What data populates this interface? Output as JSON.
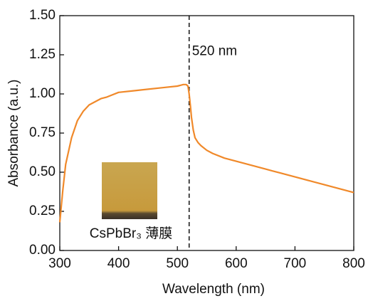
{
  "chart_data": {
    "type": "line",
    "xlabel": "Wavelength (nm)",
    "ylabel": "Absorbance (a.u.)",
    "x": [
      300,
      305,
      310,
      320,
      330,
      340,
      350,
      360,
      370,
      380,
      400,
      425,
      450,
      475,
      500,
      510,
      515,
      518,
      520,
      522,
      524,
      527,
      530,
      535,
      540,
      550,
      560,
      580,
      600,
      625,
      650,
      675,
      700,
      725,
      750,
      775,
      800
    ],
    "series": [
      {
        "name": "CsPbBr₃",
        "color": "#f0892a",
        "values": [
          0.18,
          0.38,
          0.55,
          0.72,
          0.83,
          0.89,
          0.93,
          0.95,
          0.97,
          0.98,
          1.01,
          1.02,
          1.03,
          1.04,
          1.05,
          1.06,
          1.06,
          1.05,
          1.0,
          0.93,
          0.85,
          0.77,
          0.72,
          0.69,
          0.67,
          0.64,
          0.62,
          0.59,
          0.57,
          0.545,
          0.52,
          0.495,
          0.47,
          0.445,
          0.42,
          0.395,
          0.37
        ]
      }
    ],
    "xlim": [
      300,
      800
    ],
    "ylim": [
      0,
      1.5
    ],
    "xticks": [
      300,
      400,
      500,
      600,
      700,
      800
    ],
    "yticks": [
      {
        "value": 0,
        "label": "0.00"
      },
      {
        "value": 0.25,
        "label": "0.25"
      },
      {
        "value": 0.5,
        "label": "0.50"
      },
      {
        "value": 0.75,
        "label": "0.75"
      },
      {
        "value": 1,
        "label": "1.00"
      },
      {
        "value": 1.25,
        "label": "1.25"
      },
      {
        "value": 1.5,
        "label": "1.50"
      }
    ],
    "annotations": [
      {
        "x": 520,
        "label": "520 nm"
      }
    ],
    "inset_label": "CsPbBr₃ 薄膜"
  }
}
